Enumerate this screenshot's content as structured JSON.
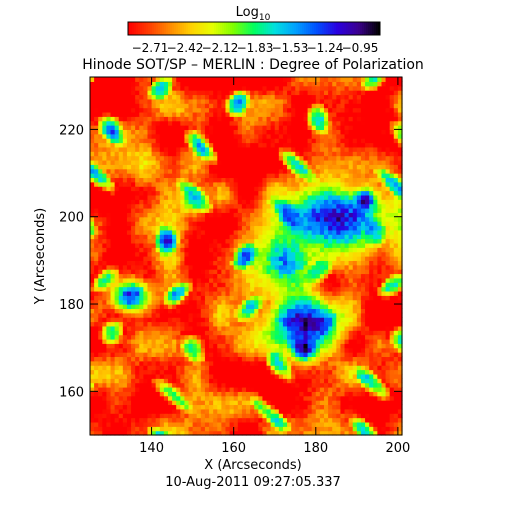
{
  "chart_data": {
    "type": "heatmap",
    "title": "Hinode SOT/SP – MERLIN : Degree of Polarization",
    "xlabel": "X (Arcseconds)",
    "ylabel": "Y (Arcseconds)",
    "timestamp": "10-Aug-2011 09:27:05.337",
    "xlim": [
      125,
      201
    ],
    "ylim": [
      150,
      232
    ],
    "x_ticks": [
      "140",
      "160",
      "180",
      "200"
    ],
    "y_ticks": [
      "160",
      "180",
      "200",
      "220"
    ],
    "colorbar": {
      "label": "Log",
      "label_subscript": "10",
      "ticks": [
        "-2.71",
        "-2.42",
        "-2.12",
        "-1.83",
        "-1.53",
        "-1.24",
        "-0.95"
      ],
      "range": [
        -2.71,
        -0.95
      ],
      "colormap": [
        "#ff0000",
        "#ff4000",
        "#ff8c00",
        "#ffd200",
        "#e6ff00",
        "#7fff00",
        "#00ff60",
        "#00e0e0",
        "#00a0ff",
        "#0050ff",
        "#2a00e0",
        "#3c0090",
        "#000000"
      ]
    },
    "grid_resolution": [
      76,
      82
    ],
    "regions_high_polarization": [
      {
        "x": 185,
        "y": 200,
        "rx": 14,
        "ry": 8,
        "value": -1.2
      },
      {
        "x": 177,
        "y": 176,
        "rx": 10,
        "ry": 7,
        "value": -1.1
      },
      {
        "x": 173,
        "y": 190,
        "rx": 7,
        "ry": 6,
        "value": -1.5
      },
      {
        "x": 135,
        "y": 182,
        "rx": 5,
        "ry": 4,
        "value": -1.3
      },
      {
        "x": 192,
        "y": 204,
        "rx": 2,
        "ry": 2,
        "value": -0.95
      },
      {
        "x": 177,
        "y": 170,
        "rx": 3,
        "ry": 3,
        "value": -1.0
      },
      {
        "x": 150,
        "y": 204,
        "rx": 3,
        "ry": 3,
        "value": -1.6
      }
    ],
    "background_value": -2.65
  }
}
